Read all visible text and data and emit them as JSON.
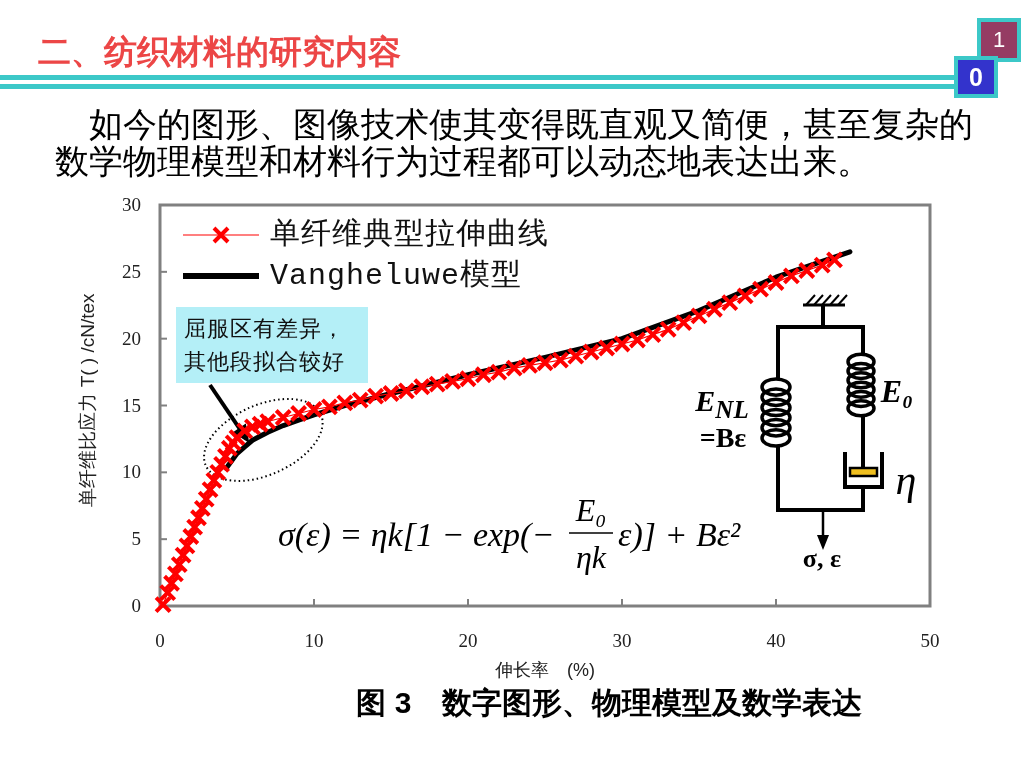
{
  "chart_data": {
    "type": "line",
    "title": "二、纺织材料的研究内容",
    "subtitle": "如今的图形、图像技术使其变得既直观又简便，甚至复杂的数学物理模型和材料行为过程都可以动态地表达出来。",
    "xlabel": "伸长率　(%)",
    "ylabel": "单纤维比应力 T( ) /cN/tex",
    "series": [
      {
        "name": "单纤维典型拉伸曲线",
        "color": "#ff0000",
        "marker": "cross",
        "x": [
          0.2,
          0.5,
          0.75,
          1,
          1.25,
          1.5,
          1.75,
          2,
          2.25,
          2.5,
          2.75,
          3,
          3.25,
          3.5,
          3.75,
          4,
          4.25,
          4.5,
          4.75,
          5,
          5.5,
          6,
          6.5,
          7,
          8,
          9,
          10,
          11,
          12,
          13,
          14,
          15,
          16,
          17,
          18,
          19,
          20,
          21,
          22,
          23,
          24,
          25,
          26,
          27,
          28,
          29,
          30,
          31,
          32,
          33,
          34,
          35,
          36,
          37,
          38,
          39,
          40,
          41,
          42,
          43,
          43.8
        ],
        "values": [
          0.1,
          1.0,
          1.7,
          2.4,
          3.1,
          3.8,
          4.5,
          5.2,
          5.9,
          6.6,
          7.3,
          8.0,
          8.7,
          9.4,
          10.0,
          10.6,
          11.2,
          11.8,
          12.2,
          12.6,
          13.1,
          13.4,
          13.6,
          13.8,
          14.1,
          14.4,
          14.7,
          14.9,
          15.2,
          15.4,
          15.7,
          15.9,
          16.1,
          16.4,
          16.6,
          16.8,
          17.0,
          17.3,
          17.5,
          17.8,
          18.0,
          18.2,
          18.4,
          18.7,
          19.0,
          19.3,
          19.6,
          19.9,
          20.3,
          20.7,
          21.2,
          21.7,
          22.2,
          22.7,
          23.2,
          23.7,
          24.2,
          24.7,
          25.1,
          25.5,
          25.9
        ]
      },
      {
        "name": "Vangheluwe模型",
        "color": "#000000",
        "marker": "none",
        "x": [
          4.3,
          5,
          5.5,
          6,
          7,
          8,
          9,
          10,
          12,
          15,
          20,
          25,
          30,
          35,
          40,
          43.8,
          44.8
        ],
        "values": [
          10.3,
          11.4,
          11.9,
          12.4,
          13.0,
          13.5,
          13.9,
          14.3,
          15.0,
          15.9,
          17.3,
          18.6,
          20.0,
          22.1,
          24.6,
          26.1,
          26.5
        ]
      }
    ],
    "xlim": [
      0,
      50
    ],
    "ylim": [
      0,
      30
    ],
    "xticks": [
      0,
      10,
      20,
      30,
      40,
      50
    ],
    "yticks": [
      0,
      5,
      10,
      15,
      20,
      25,
      30
    ],
    "legend": "top left",
    "annotations": [
      {
        "text": "屈服区有差异，其他段拟合较好",
        "x": 5.8,
        "y": 12.2
      },
      "σ(ε) = ηk[1 − exp(−",
      "E₀",
      "ηk",
      "ε)] + Bε²",
      "E$_{NL}$",
      "=Bε",
      "E₀",
      "η",
      "σ, ε",
      "图 3　数字图形、物理模型及数学表达",
      "1",
      "0"
    ]
  }
}
